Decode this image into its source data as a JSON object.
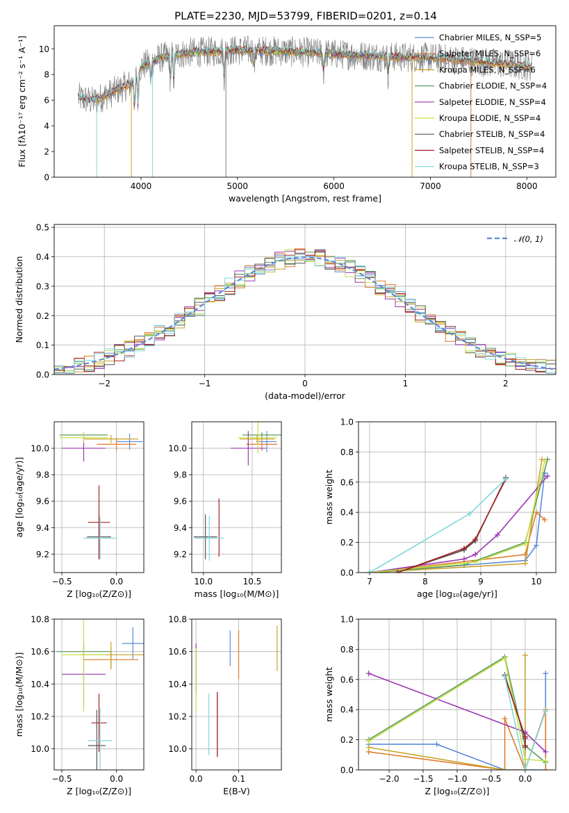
{
  "title": "PLATE=2230, MJD=53799, FIBERID=0201, z=0.14",
  "colors": {
    "chabrier_miles": "#5b8bd9",
    "salpeter_miles": "#e07b2a",
    "kroupa_miles": "#c9a227",
    "chabrier_elodie": "#5a9a5a",
    "salpeter_elodie": "#9b35b0",
    "kroupa_elodie": "#c8e046",
    "chabrier_stelib": "#555555",
    "salpeter_stelib": "#a52020",
    "kroupa_stelib": "#7fd8dc",
    "data": "#808080",
    "normal": "#5b8bd9"
  },
  "chart_data": [
    {
      "id": "spectrum",
      "type": "line",
      "xlabel": "wavelength [Angstrom, rest frame]",
      "ylabel": "Flux [fλ10⁻¹⁷ erg cm⁻² s⁻¹ A⁻¹]",
      "xlim": [
        3100,
        8300
      ],
      "ylim": [
        0,
        11.8
      ],
      "xticks": [
        "4000",
        "5000",
        "6000",
        "7000",
        "8000"
      ],
      "yticks": [
        "0",
        "2",
        "4",
        "6",
        "8",
        "10"
      ],
      "legend_position": "right",
      "legend": [
        "Chabrier MILES, N_SSP=5",
        "Salpeter MILES, N_SSP=6",
        "Kroupa MILES, N_SSP=6",
        "Chabrier ELODIE, N_SSP=4",
        "Salpeter ELODIE, N_SSP=4",
        "Kroupa ELODIE, N_SSP=4",
        "Chabrier STELIB, N_SSP=4",
        "Salpeter STELIB, N_SSP=4",
        "Kroupa STELIB, N_SSP=3"
      ],
      "continuum": {
        "x": [
          3350,
          3500,
          3700,
          3900,
          4000,
          4200,
          4500,
          4800,
          5000,
          5500,
          6000,
          6500,
          7000,
          7500,
          8000,
          8050
        ],
        "y": [
          6.2,
          5.9,
          6.6,
          7.3,
          8.6,
          9.3,
          9.7,
          9.8,
          9.9,
          9.8,
          9.6,
          9.4,
          9.3,
          9.0,
          8.7,
          8.6
        ]
      }
    },
    {
      "id": "residuals",
      "type": "bar",
      "xlabel": "(data-model)/error",
      "ylabel": "Normed distribution",
      "xlim": [
        -2.5,
        2.5
      ],
      "ylim": [
        0,
        0.51
      ],
      "xticks": [
        "−2",
        "−1",
        "0",
        "1",
        "2"
      ],
      "yticks": [
        "0.0",
        "0.1",
        "0.2",
        "0.3",
        "0.4",
        "0.5"
      ],
      "legend": "𝒩(0, 1)",
      "legend_position": "top-right",
      "bins": 50
    },
    {
      "id": "age_vs_Z",
      "type": "scatter",
      "xlabel": "Z [log₁₀(Z/Z⊙)]",
      "ylabel": "age  [log₁₀(age/yr)]",
      "xlim": [
        -0.57,
        0.25
      ],
      "ylim": [
        9.06,
        10.2
      ],
      "xticks": [
        "−0.5",
        "0.0"
      ],
      "yticks": [
        "9.2",
        "9.4",
        "9.6",
        "9.8",
        "10.0"
      ],
      "points": [
        {
          "model": "chabrier_miles",
          "x": 0.12,
          "y": 10.05,
          "xerr": 0.12,
          "yerr": 0.06
        },
        {
          "model": "salpeter_miles",
          "x": 0.0,
          "y": 10.03,
          "xerr": 0.18,
          "yerr": 0.05
        },
        {
          "model": "kroupa_miles",
          "x": -0.05,
          "y": 10.07,
          "xerr": 0.25,
          "yerr": 0.03
        },
        {
          "model": "chabrier_elodie",
          "x": -0.3,
          "y": 10.1,
          "xerr": 0.22,
          "yerr": 0.02
        },
        {
          "model": "salpeter_elodie",
          "x": -0.3,
          "y": 10.0,
          "xerr": 0.2,
          "yerr": 0.1
        },
        {
          "model": "kroupa_elodie",
          "x": -0.3,
          "y": 10.08,
          "xerr": 0.22,
          "yerr": 0.04
        },
        {
          "model": "chabrier_stelib",
          "x": -0.16,
          "y": 9.33,
          "xerr": 0.11,
          "yerr": 0.17
        },
        {
          "model": "salpeter_stelib",
          "x": -0.16,
          "y": 9.44,
          "xerr": 0.1,
          "yerr": 0.28
        },
        {
          "model": "kroupa_stelib",
          "x": -0.15,
          "y": 9.32,
          "xerr": 0.15,
          "yerr": 0.16
        }
      ]
    },
    {
      "id": "age_vs_mass",
      "type": "scatter",
      "xlabel": "mass [log₁₀(M/M⊙)]",
      "xlim": [
        9.88,
        10.8
      ],
      "ylim": [
        9.06,
        10.2
      ],
      "xticks": [
        "10.0",
        "10.5"
      ],
      "yticks": [
        "9.2",
        "9.4",
        "9.6",
        "9.8",
        "10.0"
      ],
      "points": [
        {
          "model": "chabrier_miles",
          "x": 10.65,
          "y": 10.05,
          "xerr": 0.1,
          "yerr": 0.08
        },
        {
          "model": "salpeter_miles",
          "x": 10.6,
          "y": 10.03,
          "xerr": 0.16,
          "yerr": 0.05
        },
        {
          "model": "kroupa_miles",
          "x": 10.55,
          "y": 10.07,
          "xerr": 0.18,
          "yerr": 0.03
        },
        {
          "model": "chabrier_elodie",
          "x": 10.6,
          "y": 10.1,
          "xerr": 0.2,
          "yerr": 0.02
        },
        {
          "model": "salpeter_elodie",
          "x": 10.46,
          "y": 10.0,
          "xerr": 0.18,
          "yerr": 0.13
        },
        {
          "model": "kroupa_elodie",
          "x": 10.56,
          "y": 10.08,
          "xerr": 0.2,
          "yerr": 0.12
        },
        {
          "model": "chabrier_stelib",
          "x": 10.02,
          "y": 9.33,
          "xerr": 0.12,
          "yerr": 0.17
        },
        {
          "model": "salpeter_stelib",
          "x": 10.16,
          "y": 9.4,
          "xerr": 0.0,
          "yerr": 0.22
        },
        {
          "model": "kroupa_stelib",
          "x": 10.06,
          "y": 9.32,
          "xerr": 0.15,
          "yerr": 0.17
        }
      ]
    },
    {
      "id": "mass_weight_vs_age",
      "type": "line",
      "xlabel": "age  [log₁₀(age/yr)]",
      "ylabel": "mass weight",
      "xlim": [
        6.8,
        10.35
      ],
      "ylim": [
        0,
        1.0
      ],
      "xticks": [
        "7",
        "8",
        "9",
        "10"
      ],
      "yticks": [
        "0.0",
        "0.2",
        "0.4",
        "0.6",
        "0.8",
        "1.0"
      ],
      "series": [
        {
          "model": "chabrier_miles",
          "x": [
            7.0,
            9.8,
            10.0,
            10.15
          ],
          "y": [
            0.0,
            0.08,
            0.18,
            0.66
          ]
        },
        {
          "model": "salpeter_miles",
          "x": [
            7.0,
            9.8,
            10.0,
            10.15
          ],
          "y": [
            0.0,
            0.12,
            0.4,
            0.35
          ]
        },
        {
          "model": "kroupa_miles",
          "x": [
            7.0,
            9.8,
            10.1
          ],
          "y": [
            0.0,
            0.06,
            0.75
          ]
        },
        {
          "model": "chabrier_elodie",
          "x": [
            7.0,
            8.7,
            9.8,
            10.2
          ],
          "y": [
            0.0,
            0.05,
            0.2,
            0.75
          ]
        },
        {
          "model": "salpeter_elodie",
          "x": [
            7.0,
            8.7,
            8.9,
            9.3,
            10.2
          ],
          "y": [
            0.0,
            0.09,
            0.12,
            0.25,
            0.64
          ]
        },
        {
          "model": "kroupa_elodie",
          "x": [
            7.0,
            8.9,
            9.8,
            10.15
          ],
          "y": [
            0.0,
            0.07,
            0.19,
            0.74
          ]
        },
        {
          "model": "chabrier_stelib",
          "x": [
            7.5,
            8.7,
            8.9,
            9.45
          ],
          "y": [
            0.0,
            0.15,
            0.21,
            0.63
          ]
        },
        {
          "model": "salpeter_stelib",
          "x": [
            7.5,
            8.7,
            8.9,
            9.45
          ],
          "y": [
            0.0,
            0.16,
            0.22,
            0.62
          ]
        },
        {
          "model": "kroupa_stelib",
          "x": [
            7.0,
            8.8,
            9.45
          ],
          "y": [
            0.0,
            0.39,
            0.62
          ]
        }
      ]
    },
    {
      "id": "mass_vs_Z",
      "type": "scatter",
      "xlabel": "Z [log₁₀(Z/Z⊙)]",
      "ylabel": "mass [log₁₀(M/M⊙)]",
      "xlim": [
        -0.57,
        0.25
      ],
      "ylim": [
        9.87,
        10.8
      ],
      "xticks": [
        "−0.5",
        "0.0"
      ],
      "yticks": [
        "10.0",
        "10.2",
        "10.4",
        "10.6",
        "10.8"
      ],
      "points": [
        {
          "model": "chabrier_miles",
          "x": 0.15,
          "y": 10.65,
          "xerr": 0.1,
          "yerr": 0.1
        },
        {
          "model": "salpeter_miles",
          "x": -0.05,
          "y": 10.55,
          "xerr": 0.25,
          "yerr": 0.06
        },
        {
          "model": "kroupa_miles",
          "x": -0.05,
          "y": 10.58,
          "xerr": 0.3,
          "yerr": 0.08
        },
        {
          "model": "chabrier_elodie",
          "x": -0.3,
          "y": 10.6,
          "xerr": 0.25,
          "yerr": 0.02
        },
        {
          "model": "salpeter_elodie",
          "x": -0.3,
          "y": 10.46,
          "xerr": 0.2,
          "yerr": 0.2
        },
        {
          "model": "kroupa_elodie",
          "x": -0.3,
          "y": 10.58,
          "xerr": 0.2,
          "yerr": 0.35
        },
        {
          "model": "chabrier_stelib",
          "x": -0.18,
          "y": 10.02,
          "xerr": 0.08,
          "yerr": 0.22
        },
        {
          "model": "salpeter_stelib",
          "x": -0.16,
          "y": 10.16,
          "xerr": 0.07,
          "yerr": 0.18
        },
        {
          "model": "kroupa_stelib",
          "x": -0.15,
          "y": 10.05,
          "xerr": 0.11,
          "yerr": 0.2
        }
      ]
    },
    {
      "id": "mass_vs_ebv",
      "type": "scatter",
      "xlabel": "E(B-V)",
      "xlim": [
        -0.01,
        0.2
      ],
      "ylim": [
        9.87,
        10.8
      ],
      "xticks": [
        "0.0",
        "0.1"
      ],
      "yticks": [
        "10.0",
        "10.2",
        "10.4",
        "10.6",
        "10.8"
      ],
      "points": [
        {
          "model": "chabrier_miles",
          "x": 0.08,
          "y": 10.62,
          "yerr": 0.11
        },
        {
          "model": "salpeter_miles",
          "x": 0.1,
          "y": 10.58,
          "yerr": 0.15
        },
        {
          "model": "kroupa_miles",
          "x": 0.19,
          "y": 10.62,
          "yerr": 0.14
        },
        {
          "model": "chabrier_elodie",
          "x": 0.0,
          "y": 10.48,
          "yerr": 0.15
        },
        {
          "model": "salpeter_elodie",
          "x": 0.0,
          "y": 10.5,
          "yerr": 0.15
        },
        {
          "model": "kroupa_elodie",
          "x": 0.0,
          "y": 10.42,
          "yerr": 0.2
        },
        {
          "model": "chabrier_stelib",
          "x": 0.05,
          "y": 10.15,
          "yerr": 0.2
        },
        {
          "model": "salpeter_stelib",
          "x": 0.05,
          "y": 10.15,
          "yerr": 0.2
        },
        {
          "model": "kroupa_stelib",
          "x": 0.03,
          "y": 10.15,
          "yerr": 0.19
        }
      ]
    },
    {
      "id": "mass_weight_vs_Z",
      "type": "line",
      "xlabel": "Z [log₁₀(Z/Z⊙)]",
      "ylabel": "mass weight",
      "xlim": [
        -2.45,
        0.45
      ],
      "ylim": [
        0,
        1.0
      ],
      "xticks": [
        "−2.0",
        "−1.5",
        "−1.0",
        "−0.5",
        "0.0"
      ],
      "yticks": [
        "0.0",
        "0.2",
        "0.4",
        "0.6",
        "0.8",
        "1.0"
      ],
      "series": [
        {
          "model": "chabrier_miles",
          "x": [
            -2.3,
            -1.3,
            -0.3,
            0.3,
            0.3
          ],
          "y": [
            0.17,
            0.17,
            0.0,
            0.0,
            0.64
          ]
        },
        {
          "model": "salpeter_miles",
          "x": [
            -2.3,
            -0.3,
            -0.3,
            0.0,
            0.3,
            0.3
          ],
          "y": [
            0.12,
            0.0,
            0.34,
            0.0,
            0.4,
            0.0
          ]
        },
        {
          "model": "kroupa_miles",
          "x": [
            -2.3,
            -0.3,
            0.0,
            0.0
          ],
          "y": [
            0.15,
            0.0,
            0.0,
            0.76
          ]
        },
        {
          "model": "chabrier_elodie",
          "x": [
            -2.3,
            -0.3,
            0.0,
            0.3
          ],
          "y": [
            0.2,
            0.75,
            0.16,
            0.05
          ]
        },
        {
          "model": "salpeter_elodie",
          "x": [
            -2.3,
            0.0,
            0.3
          ],
          "y": [
            0.64,
            0.25,
            0.12
          ]
        },
        {
          "model": "kroupa_elodie",
          "x": [
            -2.3,
            -0.3,
            0.0,
            0.3
          ],
          "y": [
            0.19,
            0.74,
            0.07,
            0.06
          ]
        },
        {
          "model": "chabrier_stelib",
          "x": [
            -0.3,
            0.0,
            0.0
          ],
          "y": [
            0.63,
            0.21,
            0.15
          ]
        },
        {
          "model": "salpeter_stelib",
          "x": [
            -0.3,
            0.0,
            0.0
          ],
          "y": [
            0.62,
            0.22,
            0.16
          ]
        },
        {
          "model": "kroupa_stelib",
          "x": [
            -0.3,
            0.0,
            0.3
          ],
          "y": [
            0.62,
            0.0,
            0.39
          ]
        }
      ]
    }
  ]
}
